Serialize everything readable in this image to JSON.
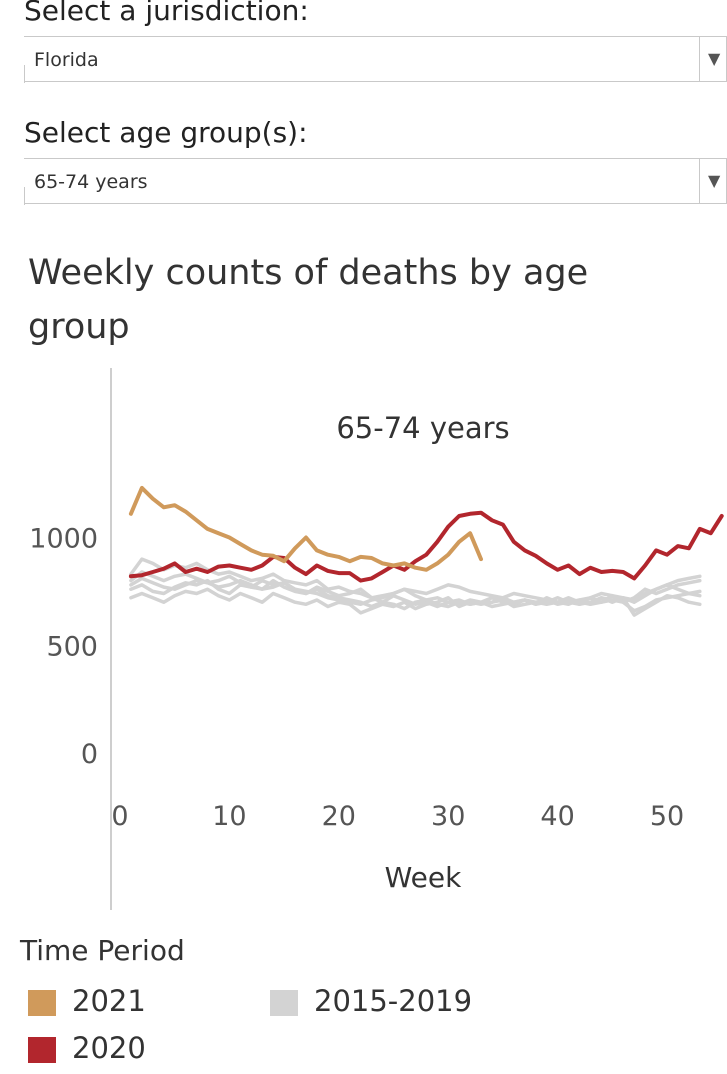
{
  "controls": {
    "jurisdiction_label": "Select a jurisdiction:",
    "jurisdiction_value": "Florida",
    "age_label": "Select age group(s):",
    "age_value": "65-74 years"
  },
  "chart_data": {
    "type": "line",
    "title": "Weekly counts of deaths by age group",
    "panel_label": "65-74 years",
    "xlabel": "Week",
    "ylabel": "",
    "xlim": [
      0,
      53
    ],
    "ylim": [
      0,
      1300
    ],
    "x_ticks": [
      0,
      10,
      20,
      30,
      40,
      50
    ],
    "y_ticks": [
      0,
      500,
      1000
    ],
    "grid": false,
    "legend_title": "Time Period",
    "legend_position": "bottom",
    "series": [
      {
        "name": "2015-2019",
        "color": "#d3d3d3",
        "values": [
          760,
          780,
          750,
          740,
          770,
          790,
          780,
          800,
          760,
          740,
          780,
          770,
          760,
          800,
          770,
          750,
          740,
          760,
          730,
          720,
          710,
          700,
          680,
          700,
          690,
          670,
          700,
          710,
          690,
          680,
          700,
          690,
          700,
          680,
          690,
          700,
          710,
          690,
          700,
          720,
          700,
          690,
          700,
          720,
          710,
          700,
          660,
          680,
          710,
          720,
          730,
          740,
          750
        ]
      },
      {
        "name": "2015-2019",
        "color": "#d3d3d3",
        "values": [
          720,
          740,
          720,
          700,
          730,
          750,
          740,
          760,
          730,
          710,
          740,
          720,
          700,
          740,
          720,
          700,
          690,
          710,
          680,
          700,
          690,
          650,
          670,
          690,
          680,
          700,
          670,
          690,
          700,
          720,
          680,
          700,
          690,
          700,
          710,
          680,
          690,
          700,
          710,
          690,
          700,
          710,
          690,
          720,
          700,
          720,
          640,
          670,
          700,
          730,
          720,
          700,
          690
        ]
      },
      {
        "name": "2015-2019",
        "color": "#d3d3d3",
        "values": [
          800,
          840,
          820,
          800,
          820,
          830,
          810,
          790,
          800,
          820,
          790,
          770,
          800,
          780,
          790,
          760,
          740,
          770,
          750,
          730,
          740,
          760,
          720,
          700,
          730,
          710,
          690,
          700,
          680,
          700,
          710,
          690,
          700,
          700,
          720,
          700,
          710,
          690,
          720,
          700,
          710,
          690,
          720,
          700,
          730,
          700,
          720,
          760,
          740,
          760,
          780,
          790,
          800
        ]
      },
      {
        "name": "2015-2019",
        "color": "#d3d3d3",
        "values": [
          830,
          900,
          880,
          850,
          870,
          860,
          880,
          850,
          830,
          840,
          820,
          800,
          810,
          830,
          800,
          790,
          780,
          800,
          760,
          770,
          750,
          740,
          720,
          730,
          740,
          760,
          730,
          710,
          720,
          700,
          690,
          710,
          700,
          720,
          700,
          690,
          710,
          700,
          690,
          700,
          720,
          700,
          690,
          700,
          710,
          720,
          700,
          730,
          760,
          780,
          800,
          810,
          820
        ]
      },
      {
        "name": "2015-2019",
        "color": "#d3d3d3",
        "values": [
          780,
          810,
          790,
          770,
          760,
          780,
          800,
          790,
          770,
          780,
          800,
          780,
          760,
          770,
          790,
          760,
          750,
          740,
          720,
          710,
          700,
          690,
          710,
          720,
          740,
          760,
          750,
          740,
          760,
          780,
          770,
          750,
          740,
          730,
          720,
          740,
          730,
          720,
          710,
          700,
          690,
          710,
          720,
          740,
          730,
          720,
          710,
          740,
          760,
          780,
          760,
          740,
          730
        ]
      },
      {
        "name": "2020",
        "color": "#b2262d",
        "values": [
          820,
          825,
          840,
          855,
          880,
          840,
          855,
          840,
          865,
          870,
          860,
          850,
          870,
          910,
          905,
          860,
          830,
          870,
          845,
          835,
          835,
          800,
          810,
          840,
          870,
          850,
          890,
          920,
          980,
          1050,
          1100,
          1110,
          1115,
          1080,
          1060,
          980,
          940,
          915,
          880,
          850,
          870,
          830,
          860,
          840,
          845,
          840,
          810,
          870,
          940,
          920,
          960,
          950,
          1040,
          1020,
          1100
        ]
      },
      {
        "name": "2021",
        "color": "#d09a5b",
        "values": [
          1110,
          1230,
          1180,
          1140,
          1150,
          1120,
          1080,
          1040,
          1020,
          1000,
          970,
          940,
          920,
          915,
          890,
          950,
          1000,
          940,
          920,
          910,
          890,
          910,
          905,
          880,
          870,
          880,
          860,
          850,
          880,
          920,
          980,
          1020,
          900
        ]
      }
    ]
  },
  "legend": {
    "title": "Time Period",
    "items": [
      {
        "label": "2021",
        "color": "#d09a5b"
      },
      {
        "label": "2015-2019",
        "color": "#d3d3d3"
      },
      {
        "label": "2020",
        "color": "#b2262d"
      }
    ]
  }
}
